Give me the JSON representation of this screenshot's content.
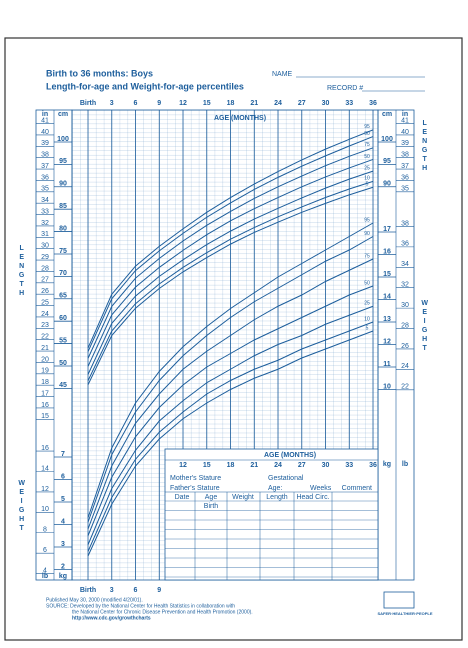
{
  "header": {
    "title": "Birth to 36 months: Boys",
    "subtitle": "Length-for-age and Weight-for-age percentiles",
    "name_label": "NAME",
    "record_label": "RECORD #"
  },
  "chart_data": [
    {
      "type": "line",
      "y_label": "LENGTH",
      "x_label": "AGE (MONTHS)",
      "y_unit": "cm",
      "y2_unit": "in",
      "color": "#1d5e9c",
      "x": [
        0,
        3,
        6,
        9,
        12,
        15,
        18,
        21,
        24,
        27,
        30,
        33,
        36
      ],
      "xlim": [
        0,
        36
      ],
      "xticks": [
        {
          "value": 0,
          "label": "Birth"
        },
        3,
        6,
        9,
        12,
        15,
        18,
        21,
        24,
        27,
        30,
        33,
        36
      ],
      "ylim": [
        38.1,
        104.1
      ],
      "yticks": [
        45,
        50,
        55,
        60,
        65,
        70,
        75,
        80,
        85,
        90,
        95,
        100
      ],
      "y2lim": [
        15,
        41
      ],
      "y2ticks": [
        15,
        16,
        17,
        18,
        19,
        20,
        21,
        22,
        23,
        24,
        25,
        26,
        27,
        28,
        29,
        30,
        31,
        32,
        33,
        34,
        35,
        36,
        37,
        38,
        39,
        40,
        41
      ],
      "series": [
        {
          "name": "95",
          "values": [
            54.0,
            66.0,
            72.3,
            76.7,
            80.6,
            84.3,
            87.6,
            90.6,
            93.4,
            96.0,
            98.4,
            100.6,
            102.7
          ]
        },
        {
          "name": "90",
          "values": [
            53.2,
            65.0,
            71.3,
            75.7,
            79.6,
            83.2,
            86.4,
            89.4,
            92.1,
            94.6,
            96.9,
            99.1,
            101.2
          ]
        },
        {
          "name": "75",
          "values": [
            51.7,
            63.3,
            69.6,
            74.0,
            77.9,
            81.4,
            84.5,
            87.4,
            90.0,
            92.4,
            94.7,
            96.8,
            98.7
          ]
        },
        {
          "name": "50",
          "values": [
            49.9,
            61.4,
            67.6,
            72.0,
            75.8,
            79.3,
            82.4,
            85.1,
            87.6,
            90.0,
            92.2,
            94.2,
            96.1
          ]
        },
        {
          "name": "25",
          "values": [
            48.1,
            59.5,
            65.6,
            70.0,
            73.7,
            77.1,
            80.1,
            82.8,
            85.2,
            87.5,
            89.7,
            91.7,
            93.5
          ]
        },
        {
          "name": "10",
          "values": [
            46.7,
            57.8,
            63.9,
            68.3,
            72.0,
            75.3,
            78.3,
            80.9,
            83.3,
            85.5,
            87.6,
            89.5,
            91.2
          ]
        },
        {
          "name": "5",
          "values": [
            45.8,
            56.8,
            62.9,
            67.3,
            71.0,
            74.2,
            77.2,
            79.8,
            82.1,
            84.3,
            86.3,
            88.2,
            89.9
          ]
        }
      ]
    },
    {
      "type": "line",
      "y_label": "WEIGHT",
      "x_label": "AGE (MONTHS)",
      "y_unit": "kg",
      "y2_unit": "lb",
      "color": "#1d5e9c",
      "x": [
        0,
        3,
        6,
        9,
        12,
        15,
        18,
        21,
        24,
        27,
        30,
        33,
        36
      ],
      "xlim": [
        0,
        36
      ],
      "xticks": [
        {
          "value": 0,
          "label": "Birth"
        },
        3,
        6,
        9,
        12,
        15,
        18,
        21,
        24,
        27,
        30,
        33,
        36
      ],
      "ylim": [
        1.5,
        18.2
      ],
      "yticks": [
        2,
        3,
        4,
        5,
        6,
        7,
        10,
        11,
        12,
        13,
        14,
        15,
        16,
        17
      ],
      "y2lim": [
        3.3,
        40.1
      ],
      "y2ticks": [
        4,
        6,
        8,
        10,
        12,
        14,
        16,
        22,
        24,
        26,
        28,
        30,
        32,
        34,
        36,
        38
      ],
      "series": [
        {
          "name": "95",
          "values": [
            4.3,
            7.4,
            9.4,
            10.8,
            11.9,
            12.8,
            13.6,
            14.3,
            15.0,
            15.6,
            16.2,
            16.8,
            17.4
          ]
        },
        {
          "name": "90",
          "values": [
            4.1,
            7.1,
            9.0,
            10.4,
            11.5,
            12.4,
            13.2,
            13.9,
            14.5,
            15.1,
            15.7,
            16.2,
            16.8
          ]
        },
        {
          "name": "75",
          "values": [
            3.8,
            6.6,
            8.5,
            9.8,
            10.9,
            11.7,
            12.4,
            13.1,
            13.7,
            14.2,
            14.8,
            15.3,
            15.8
          ]
        },
        {
          "name": "50",
          "values": [
            3.5,
            6.1,
            7.9,
            9.2,
            10.2,
            11.0,
            11.6,
            12.2,
            12.7,
            13.2,
            13.7,
            14.2,
            14.6
          ]
        },
        {
          "name": "25",
          "values": [
            3.1,
            5.6,
            7.3,
            8.6,
            9.5,
            10.3,
            10.9,
            11.5,
            12.0,
            12.4,
            12.9,
            13.3,
            13.7
          ]
        },
        {
          "name": "10",
          "values": [
            2.8,
            5.2,
            6.9,
            8.1,
            9.0,
            9.8,
            10.4,
            10.9,
            11.3,
            11.8,
            12.2,
            12.6,
            13.0
          ]
        },
        {
          "name": "5",
          "values": [
            2.6,
            4.9,
            6.6,
            7.8,
            8.7,
            9.4,
            10.0,
            10.5,
            10.9,
            11.4,
            11.8,
            12.2,
            12.6
          ]
        }
      ]
    }
  ],
  "record_table": {
    "mother": "Mother's Stature",
    "gestational": "Gestational",
    "father": "Father's Stature",
    "age": "Age:",
    "weeks": "Weeks",
    "comment": "Comment",
    "columns": [
      "Date",
      "Age",
      "Weight",
      "Length",
      "Head Circ."
    ],
    "birth": "Birth"
  },
  "footer": {
    "published": "Published May 30, 2000 (modified 4/20/01).",
    "source": "SOURCE: Developed by the National Center for Health Statistics in collaboration with",
    "source2": "the National Center for Chronic Disease Prevention and Health Promotion (2000).",
    "url": "http://www.cdc.gov/growthcharts",
    "logo": "SAFER·HEALTHIER·PEOPLE"
  }
}
